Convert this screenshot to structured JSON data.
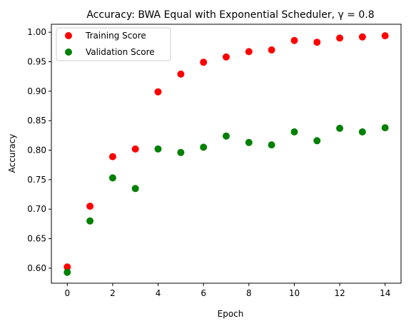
{
  "chart_data": {
    "type": "scatter",
    "title": "Accuracy: BWA Equal with Exponential Scheduler, γ = 0.8",
    "xlabel": "Epoch",
    "ylabel": "Accuracy",
    "xlim": [
      -0.7,
      14.7
    ],
    "ylim": [
      0.5745,
      1.0135
    ],
    "xticks": [
      0,
      2,
      4,
      6,
      8,
      10,
      12,
      14
    ],
    "yticks": [
      0.6,
      0.65,
      0.7,
      0.75,
      0.8,
      0.85,
      0.9,
      0.95,
      1.0
    ],
    "xtick_labels": [
      "0",
      "2",
      "4",
      "6",
      "8",
      "10",
      "12",
      "14"
    ],
    "ytick_labels": [
      "0.60",
      "0.65",
      "0.70",
      "0.75",
      "0.80",
      "0.85",
      "0.90",
      "0.95",
      "1.00"
    ],
    "grid": false,
    "legend_position": "top-left",
    "x": [
      0,
      1,
      2,
      3,
      4,
      5,
      6,
      7,
      8,
      9,
      10,
      11,
      12,
      13,
      14
    ],
    "series": [
      {
        "name": "Training Score",
        "color": "#ff0000",
        "values": [
          0.602,
          0.705,
          0.789,
          0.802,
          0.899,
          0.929,
          0.949,
          0.958,
          0.967,
          0.97,
          0.986,
          0.983,
          0.99,
          0.992,
          0.994
        ]
      },
      {
        "name": "Validation Score",
        "color": "#008000",
        "values": [
          0.593,
          0.68,
          0.753,
          0.735,
          0.802,
          0.796,
          0.805,
          0.824,
          0.813,
          0.809,
          0.831,
          0.816,
          0.837,
          0.831,
          0.838
        ]
      }
    ]
  }
}
